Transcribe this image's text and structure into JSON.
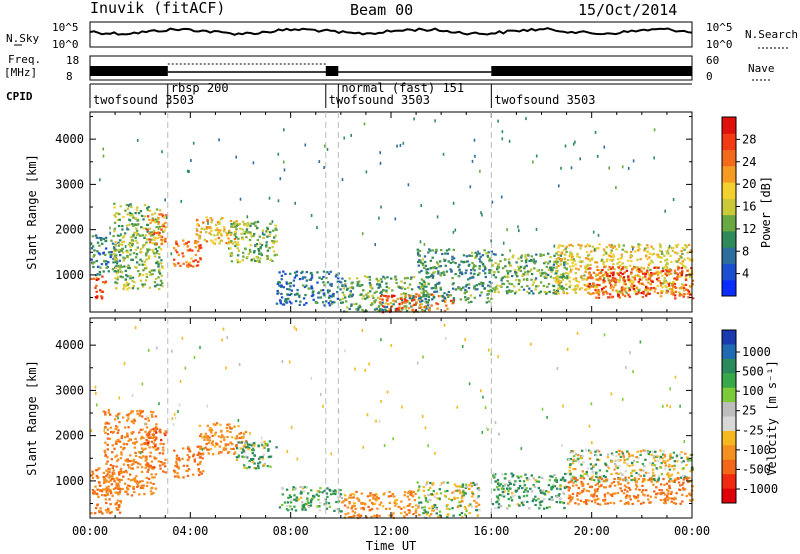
{
  "header": {
    "station": "Inuvik (fitACF)",
    "beam": "Beam 00",
    "date": "15/Oct/2014"
  },
  "noise_panel": {
    "left_label": "N.Sky",
    "right_label": "N.Search",
    "left_ticks": [
      "10^5",
      "10^0"
    ],
    "right_ticks": [
      "10^5",
      "10^0"
    ]
  },
  "freq_panel": {
    "left_label": "Freq.",
    "left_unit": "[MHz]",
    "left_ticks": [
      "18",
      "8"
    ],
    "right_label": "Nave",
    "right_ticks": [
      "60",
      "0"
    ]
  },
  "cpid_panel": {
    "label": "CPID",
    "modes": [
      {
        "name": "twofsound 3503",
        "start": 0
      },
      {
        "name": "rbsp 200",
        "start": 3.1
      },
      {
        "name": "twofsound 3503",
        "start": 9.4
      },
      {
        "name": "normal (fast) 151",
        "start": 9.9
      },
      {
        "name": "twofsound 3503",
        "start": 16.0
      }
    ]
  },
  "colors": {
    "power_scale": [
      "#0a2cff",
      "#1b4fd0",
      "#2e6e9e",
      "#2f8a5a",
      "#6aa843",
      "#c9c93a",
      "#f2d030",
      "#f59a22",
      "#f26a1a",
      "#f23a14",
      "#e0100c"
    ],
    "velocity_scale": [
      "#1a3ab0",
      "#1f6ab0",
      "#2a8a5e",
      "#38a84a",
      "#7ccc3a",
      "#bdbdbd",
      "#d8d8d8",
      "#f5b820",
      "#f59020",
      "#f26818",
      "#f02a10",
      "#e0000a"
    ]
  },
  "chart_data": [
    {
      "type": "heatmap",
      "title": "",
      "xlabel": "",
      "ylabel": "Slant Range [km]",
      "xlim": [
        0,
        24
      ],
      "ylim": [
        180,
        4600
      ],
      "x_ticks": [
        0,
        4,
        8,
        12,
        16,
        20,
        24
      ],
      "y_ticks": [
        1000,
        2000,
        3000,
        4000
      ],
      "colorbar": {
        "label": "Power [dB]",
        "range": [
          0,
          32
        ],
        "ticks": [
          "4",
          "8",
          "12",
          "16",
          "20",
          "24",
          "28"
        ]
      },
      "echo_regions": [
        {
          "t0": 0.0,
          "t1": 0.6,
          "r0": 500,
          "r1": 1000,
          "level": 27
        },
        {
          "t0": 0.0,
          "t1": 1.2,
          "r0": 1000,
          "r1": 1900,
          "level": 9
        },
        {
          "t0": 0.9,
          "t1": 2.9,
          "r0": 700,
          "r1": 2600,
          "level": 14
        },
        {
          "t0": 2.2,
          "t1": 3.0,
          "r0": 1700,
          "r1": 2400,
          "level": 24
        },
        {
          "t0": 3.3,
          "t1": 4.4,
          "r0": 1200,
          "r1": 1800,
          "level": 25
        },
        {
          "t0": 4.2,
          "t1": 5.8,
          "r0": 1700,
          "r1": 2300,
          "level": 20
        },
        {
          "t0": 5.5,
          "t1": 7.4,
          "r0": 1300,
          "r1": 2200,
          "level": 14
        },
        {
          "t0": 7.4,
          "t1": 10.0,
          "r0": 350,
          "r1": 1100,
          "level": 7
        },
        {
          "t0": 10.0,
          "t1": 13.5,
          "r0": 200,
          "r1": 1000,
          "level": 12
        },
        {
          "t0": 11.5,
          "t1": 14.5,
          "r0": 200,
          "r1": 600,
          "level": 26
        },
        {
          "t0": 13.0,
          "t1": 16.0,
          "r0": 400,
          "r1": 1600,
          "level": 10
        },
        {
          "t0": 16.0,
          "t1": 19.0,
          "r0": 600,
          "r1": 1500,
          "level": 12
        },
        {
          "t0": 18.5,
          "t1": 24.0,
          "r0": 600,
          "r1": 1700,
          "level": 18
        },
        {
          "t0": 19.8,
          "t1": 24.0,
          "r0": 500,
          "r1": 1200,
          "level": 27
        }
      ]
    },
    {
      "type": "heatmap",
      "title": "",
      "xlabel": "Time UT",
      "ylabel": "Slant Range [km]",
      "xlim": [
        0,
        24
      ],
      "ylim": [
        180,
        4600
      ],
      "x_tick_labels": [
        "00:00",
        "04:00",
        "08:00",
        "12:00",
        "16:00",
        "20:00",
        "00:00"
      ],
      "y_ticks": [
        1000,
        2000,
        3000,
        4000
      ],
      "colorbar": {
        "label": "Velocity [m s⁻¹]",
        "ticks": [
          "1000",
          "500",
          "100",
          "25",
          "-25",
          "-100",
          "-500",
          "-1000"
        ]
      },
      "echo_regions": [
        {
          "t0": 0.0,
          "t1": 1.2,
          "r0": 300,
          "r1": 1300,
          "level": -300
        },
        {
          "t0": 0.5,
          "t1": 2.6,
          "r0": 700,
          "r1": 2600,
          "level": -250
        },
        {
          "t0": 2.2,
          "t1": 3.0,
          "r0": 1200,
          "r1": 2200,
          "level": -400
        },
        {
          "t0": 3.3,
          "t1": 4.5,
          "r0": 1100,
          "r1": 1800,
          "level": -300
        },
        {
          "t0": 4.3,
          "t1": 6.2,
          "r0": 1600,
          "r1": 2300,
          "level": -200
        },
        {
          "t0": 5.8,
          "t1": 7.4,
          "r0": 1300,
          "r1": 1900,
          "level": 80
        },
        {
          "t0": 7.5,
          "t1": 10.0,
          "r0": 350,
          "r1": 900,
          "level": 90
        },
        {
          "t0": 10.0,
          "t1": 13.0,
          "r0": 200,
          "r1": 800,
          "level": -200
        },
        {
          "t0": 13.0,
          "t1": 15.5,
          "r0": 200,
          "r1": 1000,
          "level": 10
        },
        {
          "t0": 16.0,
          "t1": 19.0,
          "r0": 400,
          "r1": 1200,
          "level": 100
        },
        {
          "t0": 19.0,
          "t1": 24.0,
          "r0": 1000,
          "r1": 1700,
          "level": 0
        },
        {
          "t0": 19.0,
          "t1": 24.0,
          "r0": 500,
          "r1": 1100,
          "level": -300
        }
      ]
    }
  ]
}
